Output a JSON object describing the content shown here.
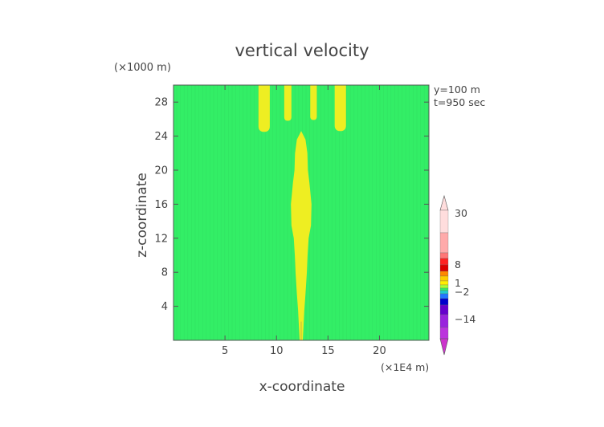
{
  "chart_data": {
    "type": "heatmap",
    "title": "vertical velocity",
    "xlabel": "x-coordinate",
    "ylabel": "z-coordinate",
    "x_unit": "(×1E4 m)",
    "y_unit": "(×1000 m)",
    "xlim": [
      0,
      24.8
    ],
    "ylim": [
      0,
      30
    ],
    "xticks": [
      5,
      10,
      15,
      20
    ],
    "yticks": [
      4,
      8,
      12,
      16,
      20,
      24,
      28
    ],
    "annotations": [
      "y=100 m",
      "t=950 sec"
    ],
    "background_value_color": "#33ee66",
    "highlight_color": "#eeee22",
    "regions": [
      {
        "kind": "central-plume",
        "x_center": 12.4,
        "z_range": [
          0,
          24.6
        ]
      },
      {
        "kind": "top-blob",
        "x_center": 8.8,
        "z_range": [
          24.5,
          30
        ]
      },
      {
        "kind": "top-blob",
        "x_center": 11.1,
        "z_range": [
          25.8,
          30
        ]
      },
      {
        "kind": "top-blob",
        "x_center": 13.6,
        "z_range": [
          25.9,
          30
        ]
      },
      {
        "kind": "top-blob",
        "x_center": 16.2,
        "z_range": [
          24.6,
          30
        ]
      }
    ],
    "colorbar": {
      "labels": [
        "30",
        "8",
        "1",
        "−2",
        "−14"
      ],
      "colors": [
        "#ffdddd",
        "#ffaaaa",
        "#ff7777",
        "#ff2222",
        "#dd0000",
        "#ff8800",
        "#ffcc00",
        "#ffee00",
        "#aaff33",
        "#33ee66",
        "#22cccc",
        "#2277ff",
        "#0000cc",
        "#6600cc",
        "#9922dd",
        "#bb33dd",
        "#cc33cc"
      ]
    }
  }
}
